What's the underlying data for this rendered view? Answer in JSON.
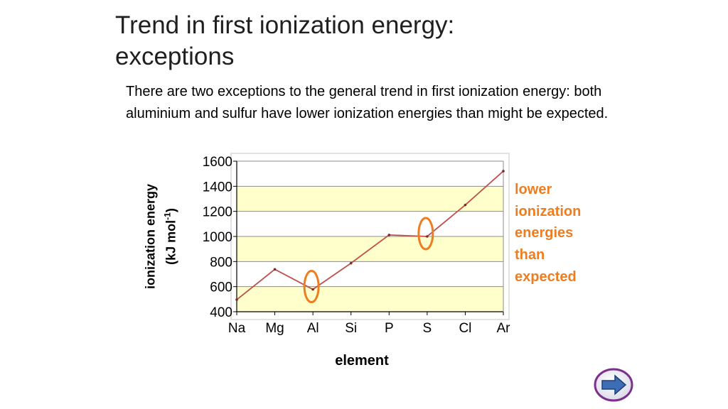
{
  "slide": {
    "title_line1": "Trend in first ionization energy:",
    "title_line2": "exceptions",
    "body": "There are two exceptions to the general trend in first ionization energy: both aluminium and sulfur have lower ionization energies than might be expected.",
    "annotation": [
      "lower",
      "ionization",
      "energies",
      "than",
      "expected"
    ],
    "annotation_color": "#ee7d22",
    "nav_icon": "next-arrow-icon"
  },
  "chart_data": {
    "type": "line",
    "title": "",
    "xlabel": "element",
    "ylabel_line1": "ionization energy",
    "ylabel_line2_prefix": "(kJ mol",
    "ylabel_line2_sup": "-1",
    "ylabel_line2_suffix": ")",
    "categories": [
      "Na",
      "Mg",
      "Al",
      "Si",
      "P",
      "S",
      "Cl",
      "Ar"
    ],
    "series": [
      {
        "values": [
          496,
          738,
          578,
          787,
          1012,
          1000,
          1251,
          1521
        ],
        "color": "#c0504d"
      }
    ],
    "ylim": [
      400,
      1600
    ],
    "yticks": [
      400,
      600,
      800,
      1000,
      1200,
      1400,
      1600
    ],
    "grid": true,
    "band_color": "#ffffcc",
    "highlighted": [
      "Al",
      "S"
    ],
    "highlight_color": "#ee7d22"
  }
}
